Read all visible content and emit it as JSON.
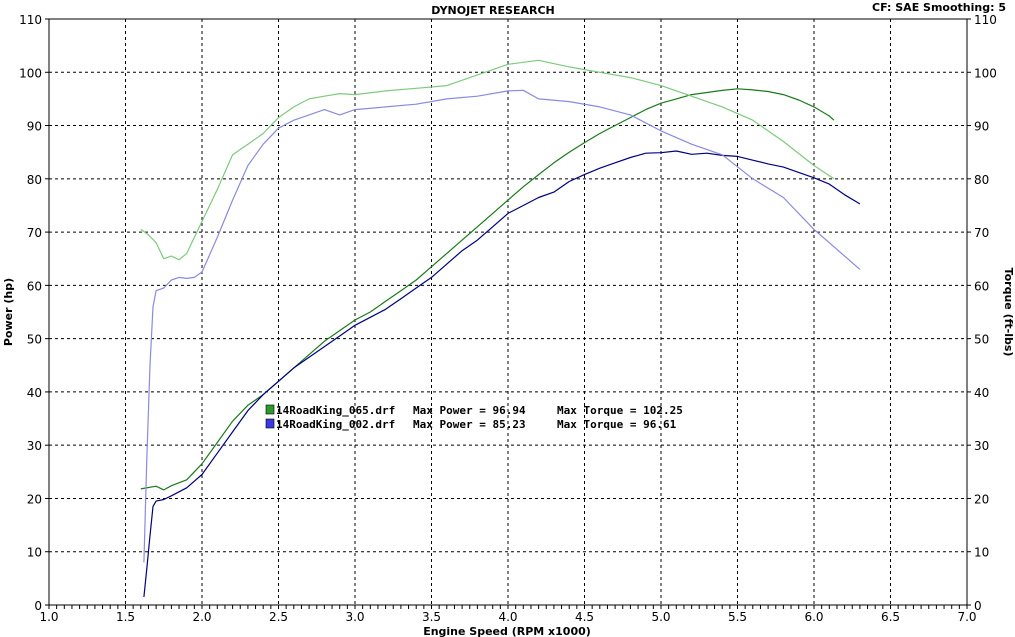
{
  "header": {
    "title": "DYNOJET RESEARCH",
    "cf_info": "CF: SAE  Smoothing: 5"
  },
  "chart_data": {
    "type": "line",
    "title": "DYNOJET RESEARCH",
    "xlabel": "Engine Speed (RPM x1000)",
    "ylabel": "Power (hp)",
    "y2label": "Torque (ft-lbs)",
    "xlim": [
      1.0,
      7.0
    ],
    "ylim": [
      0,
      110
    ],
    "y2lim": [
      0,
      110
    ],
    "x_ticks": [
      "1.0",
      "1.5",
      "2.0",
      "2.5",
      "3.0",
      "3.5",
      "4.0",
      "4.5",
      "5.0",
      "5.5",
      "6.0",
      "6.5",
      "7.0"
    ],
    "y_ticks": [
      "0",
      "10",
      "20",
      "30",
      "40",
      "50",
      "60",
      "70",
      "80",
      "90",
      "100",
      "110"
    ],
    "grid": true,
    "colors": {
      "run1_power": "#1a7a1a",
      "run1_torque": "#7fc97f",
      "run2_power": "#00007f",
      "run2_torque": "#8a8ae0",
      "legend_run1": "#2e9a2e",
      "legend_run2": "#3a3ae0"
    },
    "legend": [
      {
        "file": "14RoadKing_065.drf",
        "power_label": "Max Power = 96.94",
        "torque_label": "Max Torque = 102.25"
      },
      {
        "file": "14RoadKing_002.drf",
        "power_label": "Max Power = 85.23",
        "torque_label": "Max Torque = 96.61"
      }
    ],
    "series": [
      {
        "name": "14RoadKing_065.drf",
        "measure": "power",
        "x": [
          1.6,
          1.7,
          1.75,
          1.8,
          1.9,
          2.0,
          2.1,
          2.2,
          2.3,
          2.4,
          2.5,
          2.6,
          2.7,
          2.8,
          2.9,
          3.0,
          3.1,
          3.2,
          3.3,
          3.4,
          3.5,
          3.6,
          3.7,
          3.8,
          3.9,
          4.0,
          4.1,
          4.2,
          4.3,
          4.4,
          4.5,
          4.6,
          4.7,
          4.8,
          4.9,
          5.0,
          5.1,
          5.2,
          5.3,
          5.4,
          5.5,
          5.6,
          5.7,
          5.8,
          5.9,
          6.0,
          6.1,
          6.13
        ],
        "y": [
          21.8,
          22.3,
          21.6,
          22.4,
          23.5,
          26.5,
          30.5,
          34.5,
          37.5,
          39.5,
          42.0,
          44.5,
          47.0,
          49.5,
          51.5,
          53.5,
          55.0,
          57.0,
          59.0,
          61.0,
          63.5,
          66.0,
          68.5,
          71.0,
          73.5,
          76.0,
          78.5,
          80.8,
          83.0,
          85.0,
          86.8,
          88.5,
          90.0,
          91.5,
          93.0,
          94.2,
          95.0,
          95.8,
          96.2,
          96.6,
          96.9,
          96.7,
          96.4,
          95.8,
          94.8,
          93.5,
          91.8,
          91.0
        ]
      },
      {
        "name": "14RoadKing_065.drf",
        "measure": "torque",
        "x": [
          1.6,
          1.65,
          1.7,
          1.75,
          1.8,
          1.85,
          1.9,
          2.0,
          2.1,
          2.2,
          2.3,
          2.4,
          2.5,
          2.6,
          2.7,
          2.8,
          2.9,
          3.0,
          3.2,
          3.4,
          3.6,
          3.8,
          4.0,
          4.2,
          4.4,
          4.6,
          4.8,
          5.0,
          5.2,
          5.4,
          5.6,
          5.8,
          6.0,
          6.13
        ],
        "y": [
          70.5,
          69.5,
          68.0,
          65.0,
          65.5,
          64.8,
          66.0,
          72.0,
          78.0,
          84.5,
          86.5,
          88.5,
          91.5,
          93.5,
          95.0,
          95.5,
          96.0,
          95.8,
          96.5,
          97.0,
          97.5,
          99.5,
          101.5,
          102.25,
          101.0,
          100.0,
          99.0,
          97.5,
          95.5,
          93.5,
          91.0,
          87.0,
          82.5,
          80.0
        ]
      },
      {
        "name": "14RoadKing_002.drf",
        "measure": "power",
        "x": [
          1.62,
          1.64,
          1.66,
          1.68,
          1.7,
          1.75,
          1.8,
          1.9,
          2.0,
          2.1,
          2.2,
          2.3,
          2.4,
          2.5,
          2.6,
          2.7,
          2.8,
          2.9,
          3.0,
          3.1,
          3.2,
          3.3,
          3.4,
          3.5,
          3.6,
          3.7,
          3.8,
          3.9,
          4.0,
          4.1,
          4.2,
          4.3,
          4.4,
          4.5,
          4.6,
          4.7,
          4.8,
          4.9,
          5.0,
          5.1,
          5.2,
          5.3,
          5.4,
          5.5,
          5.6,
          5.7,
          5.8,
          5.9,
          6.0,
          6.1,
          6.2,
          6.3
        ],
        "y": [
          1.5,
          7.0,
          13.0,
          18.5,
          19.5,
          19.8,
          20.5,
          22.0,
          24.5,
          28.5,
          32.5,
          36.5,
          39.5,
          42.0,
          44.5,
          46.5,
          48.5,
          50.5,
          52.5,
          54.0,
          55.5,
          57.5,
          59.5,
          61.5,
          64.0,
          66.5,
          68.5,
          71.0,
          73.5,
          75.0,
          76.5,
          77.5,
          79.5,
          80.8,
          82.0,
          83.0,
          84.0,
          84.8,
          84.9,
          85.23,
          84.6,
          84.8,
          84.4,
          84.2,
          83.5,
          82.8,
          82.2,
          81.2,
          80.2,
          79.0,
          77.0,
          75.3
        ]
      },
      {
        "name": "14RoadKing_002.drf",
        "measure": "torque",
        "x": [
          1.62,
          1.64,
          1.66,
          1.68,
          1.7,
          1.75,
          1.8,
          1.85,
          1.9,
          1.95,
          2.0,
          2.1,
          2.2,
          2.3,
          2.4,
          2.5,
          2.6,
          2.7,
          2.8,
          2.9,
          3.0,
          3.2,
          3.4,
          3.6,
          3.8,
          4.0,
          4.1,
          4.2,
          4.4,
          4.6,
          4.8,
          5.0,
          5.2,
          5.4,
          5.6,
          5.8,
          6.0,
          6.1,
          6.2,
          6.3
        ],
        "y": [
          8.0,
          28.0,
          45.0,
          56.0,
          59.0,
          59.5,
          61.0,
          61.5,
          61.3,
          61.5,
          62.5,
          69.0,
          76.0,
          82.5,
          86.5,
          89.5,
          91.0,
          92.0,
          93.0,
          92.0,
          93.0,
          93.5,
          94.0,
          95.0,
          95.5,
          96.5,
          96.61,
          95.0,
          94.5,
          93.5,
          92.0,
          89.0,
          86.5,
          84.5,
          80.0,
          76.5,
          70.5,
          68.0,
          65.5,
          63.0
        ]
      }
    ]
  }
}
